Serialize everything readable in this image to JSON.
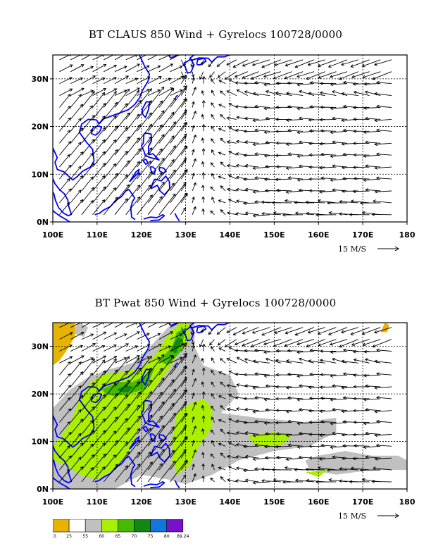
{
  "panels": [
    {
      "title": "BT CLAUS 850 Wind + Gyrelocs 100728/0000",
      "shaded": false
    },
    {
      "title": "BT Pwat 850 Wind + Gyrelocs 100728/0000",
      "shaded": true
    }
  ],
  "map": {
    "lon_range": [
      100,
      180
    ],
    "lat_range": [
      0,
      35
    ],
    "x_ticks": [
      "100E",
      "110E",
      "120E",
      "130E",
      "140E",
      "150E",
      "160E",
      "170E",
      "180"
    ],
    "y_ticks": [
      "0N",
      "10N",
      "20N",
      "30N"
    ],
    "coast_color": "#0000ff",
    "grid_style": "dotted"
  },
  "reference_vector": {
    "label": "15 M/S"
  },
  "legend": {
    "labels": [
      "0",
      "25",
      "55",
      "60",
      "65",
      "70",
      "75",
      "80",
      "89.24"
    ],
    "colors": [
      "#e6b400",
      "#ffffff",
      "#c0c0c0",
      "#aaee00",
      "#44bb00",
      "#118811",
      "#1177dd",
      "#7711cc"
    ]
  },
  "pwat_colors": {
    "low": "#e6b400",
    "gray": "#c0c0c0",
    "lime": "#aaee00",
    "green": "#44bb00",
    "dark": "#118811"
  }
}
